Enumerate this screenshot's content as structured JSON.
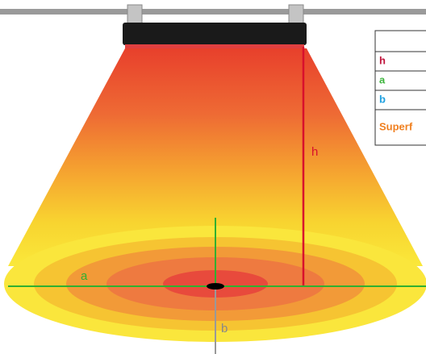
{
  "labels": {
    "h": "h",
    "a": "a",
    "b": "b"
  },
  "legend": {
    "rows": [
      "h",
      "a",
      "b",
      "Superf"
    ]
  }
}
